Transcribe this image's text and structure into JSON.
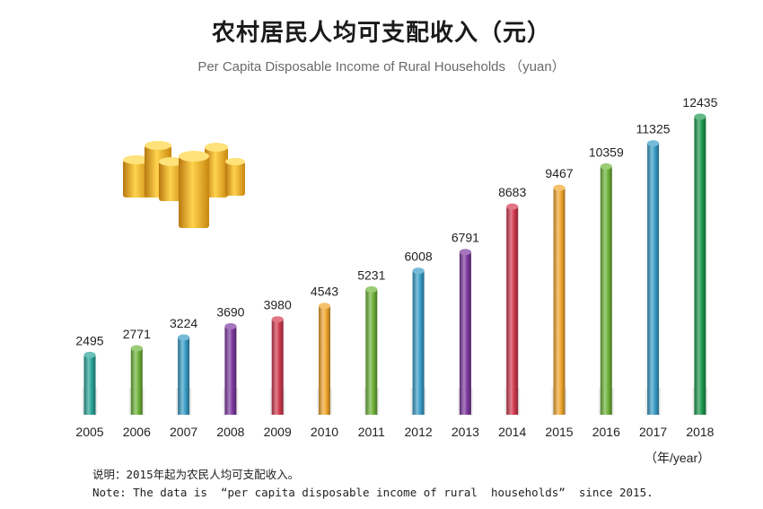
{
  "title": "农村居民人均可支配收入（元）",
  "subtitle": "Per Capita Disposable Income of Rural Households （yuan）",
  "unit_label": "（年/year）",
  "notes": {
    "line1": "说明：2015年起为农民人均可支配收入。",
    "line2": "Note: The data is  “per capita disposable income of rural  households”  since 2015."
  },
  "decoration": {
    "icon": "gold-coins-icon"
  },
  "chart_data": {
    "type": "bar",
    "title": "农村居民人均可支配收入（元）",
    "subtitle": "Per Capita Disposable Income of Rural Households （yuan）",
    "xlabel": "（年/year）",
    "ylabel": "",
    "categories": [
      "2005",
      "2006",
      "2007",
      "2008",
      "2009",
      "2010",
      "2011",
      "2012",
      "2013",
      "2014",
      "2015",
      "2016",
      "2017",
      "2018"
    ],
    "values": [
      2495,
      2771,
      3224,
      3690,
      3980,
      4543,
      5231,
      6008,
      6791,
      8683,
      9467,
      10359,
      11325,
      12435
    ],
    "colors": [
      "#2aa59a",
      "#6fb43a",
      "#3a9ec8",
      "#7e3aa0",
      "#d23a50",
      "#f2a830",
      "#6fb43a",
      "#3a9ec8",
      "#7e3aa0",
      "#d23a50",
      "#f2a830",
      "#6fb43a",
      "#3a9ec8",
      "#1e9a50"
    ],
    "ylim": [
      0,
      12435
    ],
    "grid": false,
    "legend": "none"
  }
}
